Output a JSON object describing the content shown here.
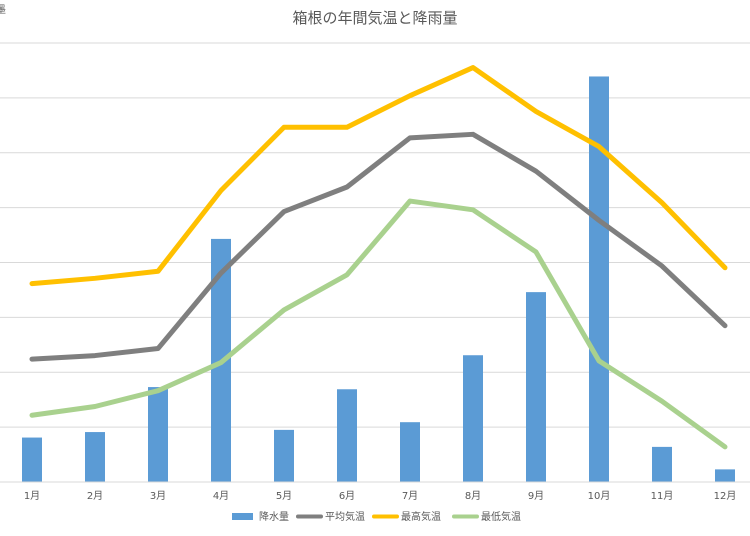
{
  "chart_data": {
    "type": "bar",
    "title": "箱根の年間気温と降雨量",
    "categories": [
      "1月",
      "2月",
      "3月",
      "4月",
      "5月",
      "6月",
      "7月",
      "8月",
      "9月",
      "10月",
      "11月",
      "12月"
    ],
    "series": [
      {
        "name": "降水量",
        "type": "bar",
        "color": "#5b9bd5",
        "values": [
          81,
          91,
          173,
          443,
          95,
          169,
          109,
          231,
          346,
          739,
          64,
          23
        ]
      },
      {
        "name": "平均気温",
        "type": "line",
        "color": "#7f7f7f",
        "values": [
          2.0,
          2.2,
          2.6,
          6.9,
          10.4,
          11.8,
          14.6,
          14.8,
          12.7,
          9.9,
          7.3,
          3.9
        ]
      },
      {
        "name": "最高気温",
        "type": "line",
        "color": "#ffc000",
        "values": [
          6.3,
          6.6,
          7.0,
          11.6,
          15.2,
          15.2,
          17.0,
          18.6,
          16.1,
          14.1,
          10.9,
          7.2
        ]
      },
      {
        "name": "最低気温",
        "type": "line",
        "color": "#a9d18e",
        "values": [
          -1.2,
          -0.7,
          0.2,
          1.8,
          4.8,
          6.8,
          11.0,
          10.5,
          8.1,
          1.9,
          -0.4,
          -3.0
        ]
      }
    ],
    "xlabel": "",
    "ylabel": "",
    "legend_position": "bottom",
    "grid": true
  }
}
